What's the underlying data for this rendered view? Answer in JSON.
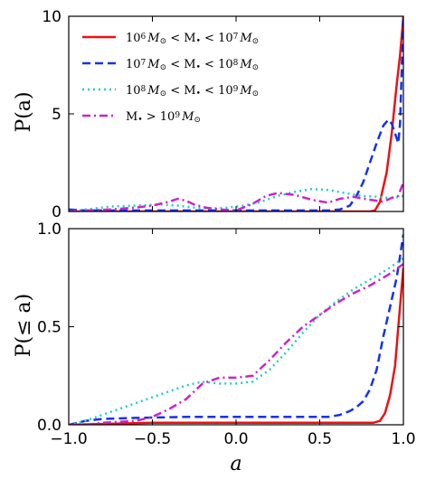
{
  "colors": {
    "low": "#ee1111",
    "mid": "#1133ee",
    "high": "#22cccc",
    "vhigh": "#cc22cc"
  },
  "chart_data": [
    {
      "type": "line",
      "panel": "top",
      "ylabel": "P(a)",
      "xlim": [
        -1.0,
        1.0
      ],
      "ylim": [
        0,
        10
      ],
      "yticks": [
        "0",
        "5",
        "10"
      ],
      "legend_position": "upper-left",
      "series": [
        {
          "name": "10^6 M☉ < M• < 10^7 M☉",
          "legend_parts": [
            "10",
            "6",
            "M",
            "⊙",
            " < M",
            "•",
            " < 10",
            "7",
            "M",
            "⊙"
          ],
          "style": "solid",
          "color_key": "low",
          "x": [
            -1.0,
            -0.8,
            -0.5,
            0.0,
            0.5,
            0.8,
            0.83,
            0.86,
            0.9,
            0.93,
            0.96,
            0.98,
            1.0
          ],
          "y": [
            0.0,
            0.0,
            0.0,
            0.0,
            0.0,
            0.0,
            0.05,
            0.5,
            2.0,
            4.0,
            6.5,
            8.0,
            10.0
          ]
        },
        {
          "name": "10^7 M☉ < M• < 10^8 M☉",
          "legend_parts": [
            "10",
            "7",
            "M",
            "⊙",
            " < M",
            "•",
            " < 10",
            "8",
            "M",
            "⊙"
          ],
          "style": "dashed",
          "color_key": "mid",
          "x": [
            -1.0,
            -0.9,
            -0.8,
            -0.6,
            -0.3,
            0.0,
            0.3,
            0.55,
            0.62,
            0.68,
            0.72,
            0.76,
            0.8,
            0.84,
            0.88,
            0.91,
            0.93,
            0.95,
            0.97,
            0.98,
            1.0
          ],
          "y": [
            0.1,
            0.05,
            0.05,
            0.05,
            0.05,
            0.05,
            0.05,
            0.05,
            0.1,
            0.3,
            0.8,
            1.5,
            2.5,
            3.5,
            4.4,
            4.7,
            4.5,
            4.0,
            3.5,
            4.5,
            10.0
          ]
        },
        {
          "name": "10^8 M☉ < M• < 10^9 M☉",
          "legend_parts": [
            "10",
            "8",
            "M",
            "⊙",
            " < M",
            "•",
            " < 10",
            "9",
            "M",
            "⊙"
          ],
          "style": "dotted",
          "color_key": "high",
          "x": [
            -1.0,
            -0.9,
            -0.75,
            -0.6,
            -0.45,
            -0.35,
            -0.25,
            -0.15,
            -0.05,
            0.05,
            0.15,
            0.25,
            0.35,
            0.45,
            0.55,
            0.65,
            0.75,
            0.85,
            0.9,
            0.95,
            1.0
          ],
          "y": [
            0.0,
            0.1,
            0.25,
            0.3,
            0.35,
            0.3,
            0.2,
            0.15,
            0.2,
            0.3,
            0.5,
            0.8,
            1.0,
            1.15,
            1.1,
            0.95,
            0.8,
            0.75,
            0.7,
            0.7,
            0.8
          ]
        },
        {
          "name": "M• > 10^9 M☉",
          "legend_parts": [
            "",
            "",
            "",
            "",
            "M",
            "•",
            " > 10",
            "9",
            "M",
            "⊙"
          ],
          "style": "dashdot",
          "color_key": "vhigh",
          "x": [
            -1.0,
            -0.9,
            -0.75,
            -0.6,
            -0.5,
            -0.4,
            -0.35,
            -0.3,
            -0.25,
            -0.18,
            -0.1,
            0.0,
            0.1,
            0.18,
            0.25,
            0.3,
            0.35,
            0.45,
            0.55,
            0.62,
            0.7,
            0.8,
            0.88,
            0.93,
            0.97,
            1.0
          ],
          "y": [
            0.0,
            0.05,
            0.1,
            0.2,
            0.3,
            0.5,
            0.65,
            0.55,
            0.35,
            0.2,
            0.1,
            0.05,
            0.4,
            0.8,
            0.95,
            0.9,
            0.85,
            0.6,
            0.45,
            0.65,
            0.75,
            0.6,
            0.5,
            0.7,
            0.8,
            1.5
          ]
        }
      ]
    },
    {
      "type": "line",
      "panel": "bottom",
      "xlabel": "a",
      "ylabel": "P(≤ a)",
      "xlim": [
        -1.0,
        1.0
      ],
      "ylim": [
        0,
        1.0
      ],
      "xticks": [
        "−1.0",
        "−0.5",
        "0.0",
        "0.5",
        "1.0"
      ],
      "yticks": [
        "0.0",
        "0.5",
        "1.0"
      ],
      "series": [
        {
          "color_key": "low",
          "style": "solid",
          "x": [
            -1.0,
            -0.5,
            0.0,
            0.5,
            0.82,
            0.86,
            0.89,
            0.92,
            0.95,
            0.97,
            0.99,
            1.0
          ],
          "y": [
            0.0,
            0.01,
            0.01,
            0.01,
            0.01,
            0.02,
            0.06,
            0.15,
            0.3,
            0.5,
            0.7,
            0.8
          ]
        },
        {
          "color_key": "mid",
          "style": "dashed",
          "x": [
            -1.0,
            -0.9,
            -0.8,
            -0.6,
            -0.3,
            0.0,
            0.3,
            0.55,
            0.62,
            0.68,
            0.72,
            0.76,
            0.8,
            0.84,
            0.88,
            0.92,
            0.96,
            1.0
          ],
          "y": [
            0.0,
            0.02,
            0.03,
            0.035,
            0.04,
            0.04,
            0.04,
            0.04,
            0.05,
            0.07,
            0.09,
            0.12,
            0.18,
            0.28,
            0.45,
            0.6,
            0.75,
            0.97
          ]
        },
        {
          "color_key": "high",
          "style": "dotted",
          "x": [
            -1.0,
            -0.9,
            -0.8,
            -0.7,
            -0.6,
            -0.5,
            -0.4,
            -0.3,
            -0.2,
            -0.1,
            0.0,
            0.1,
            0.2,
            0.3,
            0.4,
            0.5,
            0.6,
            0.7,
            0.8,
            0.9,
            1.0
          ],
          "y": [
            0.0,
            0.02,
            0.05,
            0.08,
            0.11,
            0.14,
            0.17,
            0.2,
            0.22,
            0.21,
            0.21,
            0.22,
            0.28,
            0.37,
            0.47,
            0.56,
            0.63,
            0.69,
            0.74,
            0.79,
            0.85
          ]
        },
        {
          "color_key": "vhigh",
          "style": "dashdot",
          "x": [
            -1.0,
            -0.9,
            -0.8,
            -0.6,
            -0.5,
            -0.4,
            -0.3,
            -0.2,
            -0.1,
            0.0,
            0.1,
            0.2,
            0.3,
            0.4,
            0.5,
            0.6,
            0.7,
            0.8,
            0.9,
            1.0
          ],
          "y": [
            0.0,
            0.0,
            0.01,
            0.02,
            0.04,
            0.08,
            0.13,
            0.21,
            0.24,
            0.24,
            0.25,
            0.33,
            0.42,
            0.5,
            0.56,
            0.62,
            0.67,
            0.71,
            0.76,
            0.82
          ]
        }
      ]
    }
  ]
}
